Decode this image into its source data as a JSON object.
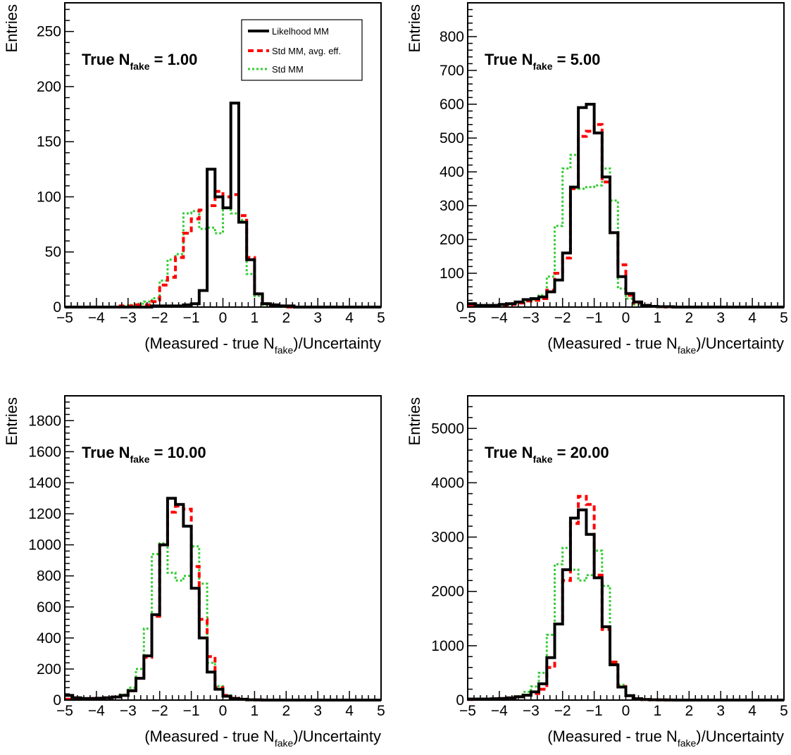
{
  "chart_data": [
    {
      "type": "line",
      "title": "",
      "annotation": {
        "prefix": "True N",
        "sub": "fake",
        "suffix": " = 1.00"
      },
      "xlabel": {
        "prefix": "(Measured - true N",
        "sub": "fake",
        "suffix": ")/Uncertainty"
      },
      "ylabel": "Entries",
      "xlim": [
        -5,
        5
      ],
      "ylim": [
        0,
        276
      ],
      "x_ticks": [
        -5,
        -4,
        -3,
        -2,
        -1,
        0,
        1,
        2,
        3,
        4,
        5
      ],
      "y_ticks": [
        0,
        50,
        100,
        150,
        200,
        250
      ],
      "bin_edges": [
        -5,
        -4.75,
        -4.5,
        -4.25,
        -4,
        -3.75,
        -3.5,
        -3.25,
        -3,
        -2.75,
        -2.5,
        -2.25,
        -2,
        -1.75,
        -1.5,
        -1.25,
        -1,
        -0.75,
        -0.5,
        -0.25,
        0,
        0.25,
        0.5,
        0.75,
        1,
        1.25,
        1.5,
        1.75,
        2,
        2.25,
        2.5,
        2.75,
        3,
        3.25,
        3.5,
        3.75,
        4,
        4.25,
        4.5,
        4.75,
        5
      ],
      "legend": {
        "position": "top-right",
        "entries": [
          "Likelhood MM",
          "Std MM, avg. eff.",
          "Std MM"
        ]
      },
      "series": [
        {
          "name": "Likelhood MM",
          "color": "#000000",
          "style": "solid",
          "values": [
            0,
            0,
            0,
            0,
            0,
            0,
            0,
            0,
            0,
            0,
            0,
            1,
            1,
            1,
            1,
            2,
            3,
            15,
            125,
            100,
            90,
            185,
            77,
            43,
            12,
            3,
            2,
            1,
            1,
            0,
            0,
            0,
            0,
            0,
            0,
            0,
            0,
            0,
            0,
            0
          ]
        },
        {
          "name": "Std MM, avg. eff.",
          "color": "#ff0000",
          "style": "dashed",
          "values": [
            0,
            0,
            0,
            0,
            0,
            0,
            0,
            1,
            1,
            2,
            2,
            5,
            20,
            27,
            45,
            67,
            80,
            88,
            92,
            105,
            100,
            102,
            83,
            45,
            12,
            3,
            2,
            1,
            0,
            0,
            0,
            0,
            0,
            0,
            0,
            0,
            0,
            0,
            0,
            0
          ]
        },
        {
          "name": "Std MM",
          "color": "#33cc33",
          "style": "dotted",
          "values": [
            0,
            0,
            0,
            0,
            0,
            0,
            0,
            1,
            2,
            3,
            5,
            8,
            24,
            43,
            48,
            85,
            87,
            71,
            72,
            67,
            90,
            85,
            79,
            30,
            10,
            2,
            1,
            1,
            0,
            0,
            0,
            0,
            0,
            0,
            0,
            0,
            0,
            0,
            0,
            0
          ]
        }
      ]
    },
    {
      "type": "line",
      "title": "",
      "annotation": {
        "prefix": "True N",
        "sub": "fake",
        "suffix": " = 5.00"
      },
      "xlabel": {
        "prefix": "(Measured - true N",
        "sub": "fake",
        "suffix": ")/Uncertainty"
      },
      "ylabel": "Entries",
      "xlim": [
        -5,
        5
      ],
      "ylim": [
        0,
        900
      ],
      "x_ticks": [
        -5,
        -4,
        -3,
        -2,
        -1,
        0,
        1,
        2,
        3,
        4,
        5
      ],
      "y_ticks": [
        0,
        100,
        200,
        300,
        400,
        500,
        600,
        700,
        800
      ],
      "bin_edges": [
        -5,
        -4.75,
        -4.5,
        -4.25,
        -4,
        -3.75,
        -3.5,
        -3.25,
        -3,
        -2.75,
        -2.5,
        -2.25,
        -2,
        -1.75,
        -1.5,
        -1.25,
        -1,
        -0.75,
        -0.5,
        -0.25,
        0,
        0.25,
        0.5,
        0.75,
        1,
        1.25,
        1.5,
        1.75,
        2,
        2.25,
        2.5,
        2.75,
        3,
        3.25,
        3.5,
        3.75,
        4,
        4.25,
        4.5,
        4.75,
        5
      ],
      "series": [
        {
          "name": "Likelhood MM",
          "color": "#000000",
          "style": "solid",
          "values": [
            10,
            5,
            5,
            5,
            8,
            10,
            15,
            22,
            25,
            30,
            45,
            80,
            160,
            355,
            590,
            600,
            515,
            385,
            220,
            90,
            40,
            15,
            5,
            2,
            1,
            1,
            0,
            0,
            0,
            0,
            0,
            0,
            0,
            0,
            0,
            0,
            0,
            0,
            0,
            0
          ]
        },
        {
          "name": "Std MM, avg. eff.",
          "color": "#ff0000",
          "style": "dashed",
          "values": [
            2,
            3,
            4,
            5,
            6,
            8,
            12,
            18,
            20,
            25,
            50,
            100,
            145,
            350,
            505,
            520,
            540,
            370,
            220,
            125,
            35,
            12,
            5,
            2,
            1,
            0,
            0,
            0,
            0,
            0,
            0,
            0,
            0,
            0,
            0,
            0,
            0,
            0,
            0,
            0
          ]
        },
        {
          "name": "Std MM",
          "color": "#33cc33",
          "style": "dotted",
          "values": [
            2,
            3,
            4,
            5,
            6,
            8,
            12,
            18,
            22,
            35,
            90,
            240,
            410,
            450,
            350,
            355,
            360,
            410,
            315,
            55,
            25,
            8,
            4,
            2,
            1,
            0,
            0,
            0,
            0,
            0,
            0,
            0,
            0,
            0,
            0,
            0,
            0,
            0,
            0,
            0
          ]
        }
      ]
    },
    {
      "type": "line",
      "title": "",
      "annotation": {
        "prefix": "True N",
        "sub": "fake",
        "suffix": " = 10.00"
      },
      "xlabel": {
        "prefix": "(Measured - true N",
        "sub": "fake",
        "suffix": ")/Uncertainty"
      },
      "ylabel": "Entries",
      "xlim": [
        -5,
        5
      ],
      "ylim": [
        0,
        1960
      ],
      "x_ticks": [
        -5,
        -4,
        -3,
        -2,
        -1,
        0,
        1,
        2,
        3,
        4,
        5
      ],
      "y_ticks": [
        0,
        200,
        400,
        600,
        800,
        1000,
        1200,
        1400,
        1600,
        1800
      ],
      "bin_edges": [
        -5,
        -4.75,
        -4.5,
        -4.25,
        -4,
        -3.75,
        -3.5,
        -3.25,
        -3,
        -2.75,
        -2.5,
        -2.25,
        -2,
        -1.75,
        -1.5,
        -1.25,
        -1,
        -0.75,
        -0.5,
        -0.25,
        0,
        0.25,
        0.5,
        0.75,
        1,
        1.25,
        1.5,
        1.75,
        2,
        2.25,
        2.5,
        2.75,
        3,
        3.25,
        3.5,
        3.75,
        4,
        4.25,
        4.5,
        4.75,
        5
      ],
      "series": [
        {
          "name": "Likelhood MM",
          "color": "#000000",
          "style": "solid",
          "values": [
            30,
            15,
            10,
            10,
            12,
            15,
            20,
            30,
            60,
            140,
            285,
            550,
            1000,
            1300,
            1260,
            1120,
            720,
            400,
            180,
            70,
            25,
            10,
            5,
            2,
            1,
            0,
            0,
            0,
            0,
            0,
            0,
            0,
            0,
            0,
            0,
            0,
            0,
            0,
            0,
            0
          ]
        },
        {
          "name": "Std MM, avg. eff.",
          "color": "#ff0000",
          "style": "dashed",
          "values": [
            5,
            6,
            8,
            10,
            12,
            15,
            20,
            30,
            60,
            140,
            275,
            540,
            1000,
            1210,
            1250,
            1230,
            860,
            520,
            280,
            80,
            30,
            12,
            5,
            2,
            1,
            0,
            0,
            0,
            0,
            0,
            0,
            0,
            0,
            0,
            0,
            0,
            0,
            0,
            0,
            0
          ]
        },
        {
          "name": "Std MM",
          "color": "#33cc33",
          "style": "dotted",
          "values": [
            5,
            6,
            8,
            10,
            12,
            15,
            20,
            35,
            80,
            200,
            460,
            940,
            1010,
            820,
            770,
            800,
            990,
            750,
            240,
            90,
            30,
            12,
            5,
            2,
            1,
            0,
            0,
            0,
            0,
            0,
            0,
            0,
            0,
            0,
            0,
            0,
            0,
            0,
            0,
            0
          ]
        }
      ]
    },
    {
      "type": "line",
      "title": "",
      "annotation": {
        "prefix": "True N",
        "sub": "fake",
        "suffix": " = 20.00"
      },
      "xlabel": {
        "prefix": "(Measured - true N",
        "sub": "fake",
        "suffix": ")/Uncertainty"
      },
      "ylabel": "Entries",
      "xlim": [
        -5,
        5
      ],
      "ylim": [
        0,
        5600
      ],
      "x_ticks": [
        -5,
        -4,
        -3,
        -2,
        -1,
        0,
        1,
        2,
        3,
        4,
        5
      ],
      "y_ticks": [
        0,
        1000,
        2000,
        3000,
        4000,
        5000
      ],
      "bin_edges": [
        -5,
        -4.75,
        -4.5,
        -4.25,
        -4,
        -3.75,
        -3.5,
        -3.25,
        -3,
        -2.75,
        -2.5,
        -2.25,
        -2,
        -1.75,
        -1.5,
        -1.25,
        -1,
        -0.75,
        -0.5,
        -0.25,
        0,
        0.25,
        0.5,
        0.75,
        1,
        1.25,
        1.5,
        1.75,
        2,
        2.25,
        2.5,
        2.75,
        3,
        3.25,
        3.5,
        3.75,
        4,
        4.25,
        4.5,
        4.75,
        5
      ],
      "series": [
        {
          "name": "Likelhood MM",
          "color": "#000000",
          "style": "solid",
          "values": [
            20,
            20,
            20,
            25,
            30,
            40,
            60,
            90,
            150,
            300,
            780,
            1400,
            2400,
            3350,
            3500,
            3050,
            2250,
            1350,
            650,
            240,
            80,
            25,
            10,
            5,
            2,
            1,
            0,
            0,
            0,
            0,
            0,
            0,
            0,
            0,
            0,
            0,
            0,
            0,
            0,
            0
          ]
        },
        {
          "name": "Std MM, avg. eff.",
          "color": "#ff0000",
          "style": "dashed",
          "values": [
            10,
            15,
            20,
            25,
            30,
            40,
            60,
            90,
            120,
            200,
            600,
            1400,
            2200,
            3250,
            3750,
            3600,
            2300,
            1300,
            700,
            250,
            80,
            25,
            10,
            5,
            2,
            1,
            0,
            0,
            0,
            0,
            0,
            0,
            0,
            0,
            0,
            0,
            0,
            0,
            0,
            0
          ]
        },
        {
          "name": "Std MM",
          "color": "#33cc33",
          "style": "dotted",
          "values": [
            10,
            15,
            20,
            25,
            30,
            40,
            70,
            150,
            250,
            500,
            1200,
            2500,
            2800,
            2400,
            2200,
            2300,
            2750,
            2100,
            700,
            280,
            90,
            30,
            12,
            5,
            2,
            1,
            0,
            0,
            0,
            0,
            0,
            0,
            0,
            0,
            0,
            0,
            0,
            0,
            0,
            0
          ]
        }
      ]
    }
  ]
}
